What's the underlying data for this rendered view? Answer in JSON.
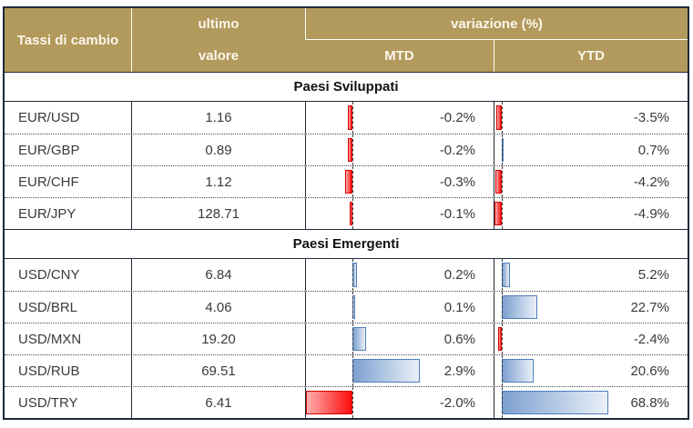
{
  "header": {
    "title": "Tassi di cambio",
    "ultimo": "ultimo",
    "valore": "valore",
    "variazione": "variazione (%)",
    "mtd": "MTD",
    "ytd": "YTD"
  },
  "colors": {
    "header_bg": "#B2995C",
    "header_text": "#FCF7EB",
    "grid_line": "#1F2A38",
    "positive_bar_start": "#7CA0CF",
    "positive_bar_end": "#EAF0F8",
    "positive_bar_border": "#4E7FBA",
    "negative_bar_start": "#FC0D0D",
    "negative_bar_end": "#FFADAD",
    "negative_bar_border": "#D40000"
  },
  "chart_data": {
    "type": "table",
    "title": "Tassi di cambio",
    "columns": [
      "Tassi di cambio",
      "ultimo valore",
      "variazione (%) MTD",
      "variazione (%) YTD"
    ],
    "bar_axis_note": "MTD and YTD cells contain conditional-format data bars: red extends left of dashed axis for negative values, blue extends right for positive values",
    "mtd_range": {
      "min": -2.0,
      "max": 2.9
    },
    "ytd_range": {
      "min": -4.9,
      "max": 68.8
    },
    "sections": [
      {
        "title": "Paesi Sviluppati",
        "rows": [
          {
            "pair": "EUR/USD",
            "last": "1.16",
            "mtd": -0.2,
            "mtd_label": "-0.2%",
            "ytd": -3.5,
            "ytd_label": "-3.5%"
          },
          {
            "pair": "EUR/GBP",
            "last": "0.89",
            "mtd": -0.2,
            "mtd_label": "-0.2%",
            "ytd": 0.7,
            "ytd_label": "0.7%"
          },
          {
            "pair": "EUR/CHF",
            "last": "1.12",
            "mtd": -0.3,
            "mtd_label": "-0.3%",
            "ytd": -4.2,
            "ytd_label": "-4.2%"
          },
          {
            "pair": "EUR/JPY",
            "last": "128.71",
            "mtd": -0.1,
            "mtd_label": "-0.1%",
            "ytd": -4.9,
            "ytd_label": "-4.9%"
          }
        ]
      },
      {
        "title": "Paesi Emergenti",
        "rows": [
          {
            "pair": "USD/CNY",
            "last": "6.84",
            "mtd": 0.2,
            "mtd_label": "0.2%",
            "ytd": 5.2,
            "ytd_label": "5.2%"
          },
          {
            "pair": "USD/BRL",
            "last": "4.06",
            "mtd": 0.1,
            "mtd_label": "0.1%",
            "ytd": 22.7,
            "ytd_label": "22.7%"
          },
          {
            "pair": "USD/MXN",
            "last": "19.20",
            "mtd": 0.6,
            "mtd_label": "0.6%",
            "ytd": -2.4,
            "ytd_label": "-2.4%"
          },
          {
            "pair": "USD/RUB",
            "last": "69.51",
            "mtd": 2.9,
            "mtd_label": "2.9%",
            "ytd": 20.6,
            "ytd_label": "20.6%"
          },
          {
            "pair": "USD/TRY",
            "last": "6.41",
            "mtd": -2.0,
            "mtd_label": "-2.0%",
            "ytd": 68.8,
            "ytd_label": "68.8%"
          }
        ]
      }
    ]
  }
}
